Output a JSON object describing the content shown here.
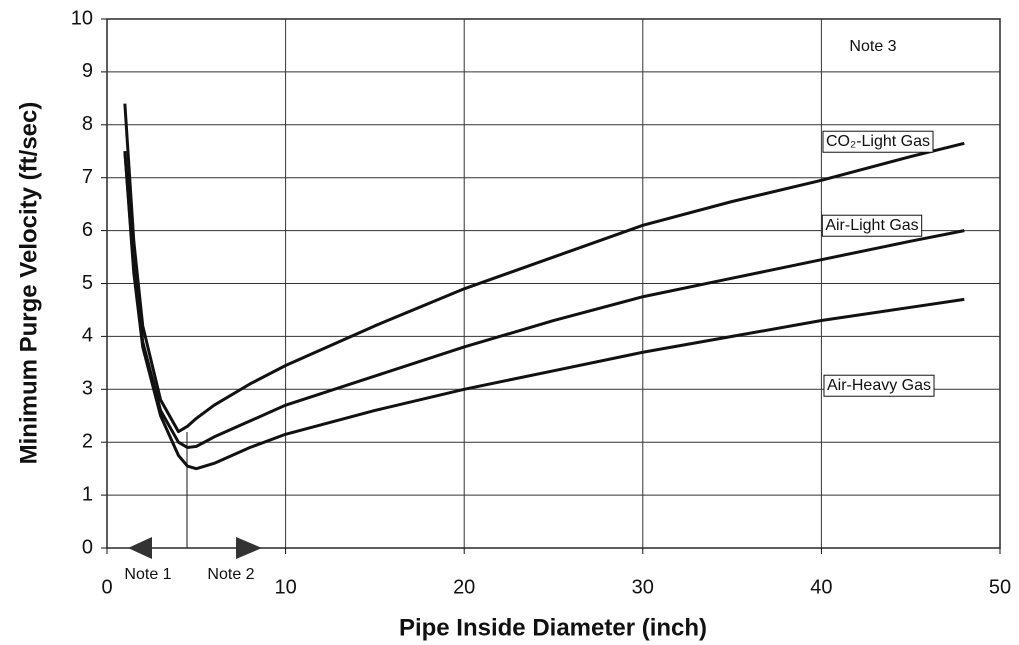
{
  "chart_data": {
    "type": "line",
    "xlabel": "Pipe Inside Diameter (inch)",
    "ylabel": "Minimum Purge Velocity (ft/sec)",
    "x": [
      1,
      1.5,
      2,
      3,
      4,
      4.5,
      5,
      6,
      8,
      10,
      15,
      20,
      25,
      30,
      35,
      40,
      45,
      48
    ],
    "series": [
      {
        "name": "CO₂-Light Gas",
        "color": "#111111",
        "values": [
          8.4,
          5.8,
          4.2,
          2.8,
          2.2,
          2.3,
          2.45,
          2.7,
          3.1,
          3.45,
          4.2,
          4.9,
          5.5,
          6.1,
          6.55,
          6.95,
          7.4,
          7.65
        ]
      },
      {
        "name": "Air-Light Gas",
        "color": "#111111",
        "values": [
          7.5,
          5.3,
          3.9,
          2.6,
          2.0,
          1.9,
          1.92,
          2.1,
          2.4,
          2.7,
          3.25,
          3.8,
          4.3,
          4.75,
          5.1,
          5.45,
          5.8,
          6.0
        ]
      },
      {
        "name": "Air-Heavy Gas",
        "color": "#111111",
        "values": [
          7.5,
          5.2,
          3.8,
          2.5,
          1.75,
          1.55,
          1.5,
          1.6,
          1.9,
          2.15,
          2.6,
          3.0,
          3.35,
          3.7,
          4.0,
          4.3,
          4.55,
          4.7
        ]
      }
    ],
    "annotations": [
      "Note 1",
      "Note 2",
      "Note 3"
    ],
    "xlim": [
      0,
      50
    ],
    "xticks": [
      0,
      10,
      20,
      30,
      40,
      50
    ],
    "ylim": [
      0,
      10
    ],
    "yticks": [
      0,
      1,
      2,
      3,
      4,
      5,
      6,
      7,
      8,
      9,
      10
    ],
    "grid": true
  }
}
